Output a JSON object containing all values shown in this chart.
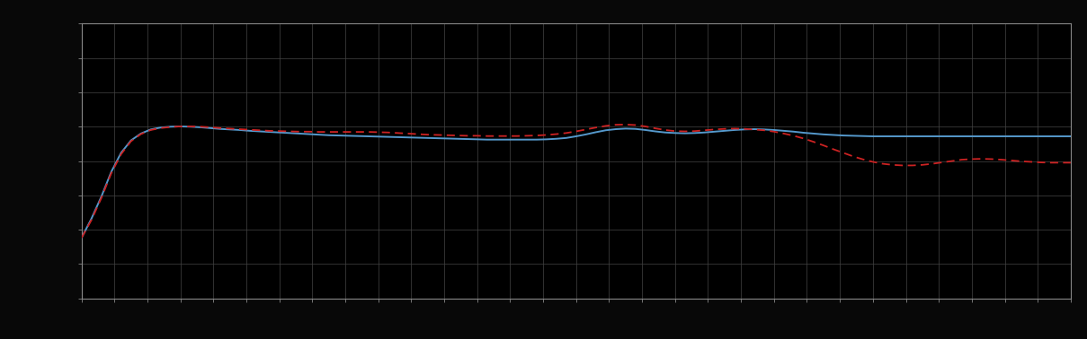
{
  "background_color": "#080808",
  "plot_bg_color": "#000000",
  "grid_color": "#444444",
  "grid_linewidth": 0.5,
  "line1_color": "#5599cc",
  "line1_linewidth": 1.4,
  "line1_style": "-",
  "line2_color": "#cc2222",
  "line2_linewidth": 1.3,
  "line2_style": "--",
  "line2_dashes": [
    5,
    3
  ],
  "xlim": [
    0,
    100
  ],
  "ylim": [
    0,
    10
  ],
  "x_grid_lines": 30,
  "y_grid_lines": 8,
  "spine_color": "#888888",
  "figsize": [
    12.09,
    3.78
  ],
  "dpi": 100,
  "blue_x": [
    0,
    1,
    2,
    3,
    4,
    5,
    6,
    7,
    8,
    9,
    10,
    11,
    12,
    13,
    14,
    15,
    16,
    17,
    18,
    19,
    20,
    21,
    22,
    23,
    24,
    25,
    26,
    27,
    28,
    29,
    30,
    31,
    32,
    33,
    34,
    35,
    36,
    37,
    38,
    39,
    40,
    41,
    42,
    43,
    44,
    45,
    46,
    47,
    48,
    49,
    50,
    51,
    52,
    53,
    54,
    55,
    56,
    57,
    58,
    59,
    60,
    61,
    62,
    63,
    64,
    65,
    66,
    67,
    68,
    69,
    70,
    71,
    72,
    73,
    74,
    75,
    76,
    77,
    78,
    79,
    80,
    81,
    82,
    83,
    84,
    85,
    86,
    87,
    88,
    89,
    90,
    91,
    92,
    93,
    94,
    95,
    96,
    97,
    98,
    99,
    100
  ],
  "blue_y": [
    2.2,
    2.9,
    3.7,
    4.6,
    5.3,
    5.75,
    6.0,
    6.15,
    6.22,
    6.25,
    6.26,
    6.25,
    6.23,
    6.2,
    6.17,
    6.15,
    6.13,
    6.1,
    6.08,
    6.06,
    6.04,
    6.02,
    6.0,
    5.98,
    5.96,
    5.94,
    5.93,
    5.92,
    5.91,
    5.9,
    5.89,
    5.88,
    5.87,
    5.86,
    5.85,
    5.84,
    5.83,
    5.82,
    5.81,
    5.8,
    5.79,
    5.78,
    5.78,
    5.78,
    5.78,
    5.78,
    5.78,
    5.79,
    5.81,
    5.84,
    5.9,
    5.97,
    6.05,
    6.12,
    6.16,
    6.18,
    6.17,
    6.13,
    6.08,
    6.04,
    6.02,
    6.01,
    6.02,
    6.04,
    6.07,
    6.1,
    6.13,
    6.15,
    6.16,
    6.15,
    6.13,
    6.1,
    6.07,
    6.03,
    6.0,
    5.97,
    5.95,
    5.93,
    5.92,
    5.91,
    5.9,
    5.9,
    5.9,
    5.9,
    5.9,
    5.9,
    5.9,
    5.9,
    5.9,
    5.9,
    5.9,
    5.9,
    5.9,
    5.9,
    5.9,
    5.9,
    5.9,
    5.9,
    5.9,
    5.9,
    5.9
  ],
  "red_y": [
    2.2,
    2.85,
    3.65,
    4.55,
    5.25,
    5.72,
    5.98,
    6.13,
    6.2,
    6.24,
    6.26,
    6.26,
    6.25,
    6.23,
    6.2,
    6.18,
    6.16,
    6.14,
    6.12,
    6.1,
    6.09,
    6.08,
    6.07,
    6.07,
    6.06,
    6.06,
    6.06,
    6.06,
    6.06,
    6.06,
    6.05,
    6.04,
    6.02,
    6.0,
    5.98,
    5.96,
    5.95,
    5.94,
    5.93,
    5.92,
    5.92,
    5.91,
    5.91,
    5.91,
    5.91,
    5.92,
    5.93,
    5.95,
    5.98,
    6.02,
    6.08,
    6.15,
    6.22,
    6.28,
    6.32,
    6.33,
    6.31,
    6.26,
    6.19,
    6.13,
    6.09,
    6.08,
    6.09,
    6.12,
    6.15,
    6.17,
    6.18,
    6.17,
    6.15,
    6.12,
    6.07,
    6.0,
    5.92,
    5.82,
    5.7,
    5.57,
    5.43,
    5.3,
    5.17,
    5.06,
    4.97,
    4.9,
    4.86,
    4.84,
    4.84,
    4.86,
    4.9,
    4.95,
    5.0,
    5.05,
    5.07,
    5.08,
    5.07,
    5.05,
    5.02,
    4.99,
    4.97,
    4.95,
    4.94,
    4.94,
    4.94
  ]
}
